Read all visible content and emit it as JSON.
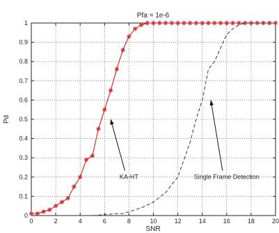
{
  "chart_data": {
    "type": "line",
    "title": "Pfa = 1e-6",
    "xlabel": "SNR",
    "ylabel": "Pd",
    "xlim": [
      0,
      20
    ],
    "ylim": [
      0,
      1
    ],
    "xticks": [
      "0",
      "2",
      "4",
      "6",
      "8",
      "10",
      "12",
      "14",
      "16",
      "18",
      "20"
    ],
    "yticks": [
      "0",
      "0.1",
      "0.2",
      "0.3",
      "0.4",
      "0.5",
      "0.6",
      "0.7",
      "0.8",
      "0.9",
      "1"
    ],
    "grid": true,
    "series": [
      {
        "name": "KA-HT",
        "color": "#d03030",
        "style": "solid",
        "marker": "star",
        "x": [
          0,
          0.5,
          1,
          1.5,
          2,
          2.5,
          3,
          3.5,
          4,
          4.5,
          5,
          5.5,
          6,
          6.5,
          7,
          7.5,
          8,
          8.5,
          9,
          9.5,
          10,
          10.5,
          11,
          11.5,
          12,
          12.5,
          13,
          13.5,
          14,
          14.5,
          15,
          15.5,
          16,
          16.5,
          17,
          17.5,
          18,
          18.5,
          19,
          19.5,
          20
        ],
        "y": [
          0.01,
          0.01,
          0.02,
          0.03,
          0.05,
          0.07,
          0.09,
          0.15,
          0.2,
          0.29,
          0.31,
          0.45,
          0.55,
          0.65,
          0.76,
          0.86,
          0.93,
          0.97,
          0.99,
          1,
          1,
          1,
          1,
          1,
          1,
          1,
          1,
          1,
          1,
          1,
          1,
          1,
          1,
          1,
          1,
          1,
          1,
          1,
          1,
          1,
          1
        ]
      },
      {
        "name": "Single Frame Detection",
        "color": "#555555",
        "style": "dashed",
        "marker": "none",
        "x": [
          0,
          2,
          4,
          5,
          6,
          7,
          7.5,
          8,
          9,
          10,
          11,
          11.5,
          12,
          12.5,
          13,
          13.5,
          14,
          14.5,
          15,
          15.5,
          16,
          16.5,
          17,
          17.5,
          18,
          19,
          20
        ],
        "y": [
          0,
          0,
          0,
          0,
          0.005,
          0.01,
          0.01,
          0.02,
          0.04,
          0.07,
          0.12,
          0.16,
          0.2,
          0.29,
          0.38,
          0.5,
          0.6,
          0.76,
          0.8,
          0.87,
          0.94,
          0.97,
          0.99,
          1,
          1,
          1,
          1
        ]
      }
    ],
    "annotations": [
      {
        "text": "KA-HT",
        "arrow_to": [
          6.5,
          0.5
        ],
        "text_at": [
          8,
          0.19
        ]
      },
      {
        "text": "Single Frame Detection",
        "arrow_to": [
          14.7,
          0.6
        ],
        "text_at": [
          16,
          0.19
        ]
      }
    ]
  }
}
